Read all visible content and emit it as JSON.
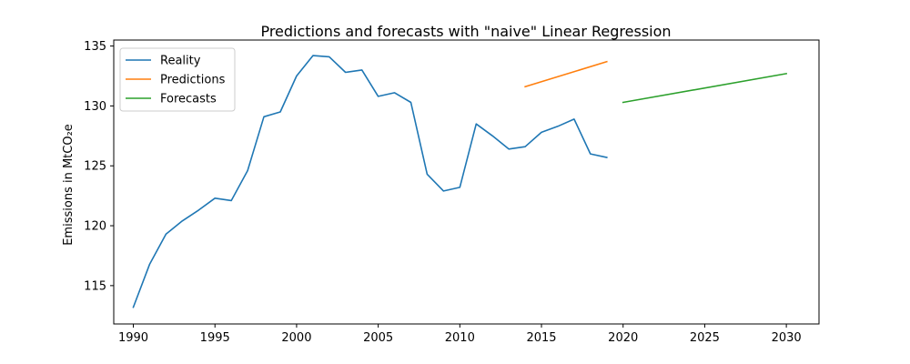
{
  "chart_data": {
    "type": "line",
    "title": "Predictions and forecasts with \"naive\" Linear Regression",
    "xlabel": "",
    "ylabel": "Emissions in MtCO₂e",
    "xlim": [
      1988.8,
      2032
    ],
    "ylim": [
      111.8,
      135.5
    ],
    "xticks": [
      1990,
      1995,
      2000,
      2005,
      2010,
      2015,
      2020,
      2025,
      2030
    ],
    "yticks": [
      115,
      120,
      125,
      130,
      135
    ],
    "grid": false,
    "legend_position": "top-left",
    "series": [
      {
        "name": "Reality",
        "color": "#1f77b4",
        "x": [
          1990,
          1991,
          1992,
          1993,
          1994,
          1995,
          1996,
          1997,
          1998,
          1999,
          2000,
          2001,
          2002,
          2003,
          2004,
          2005,
          2006,
          2007,
          2008,
          2009,
          2010,
          2011,
          2012,
          2013,
          2014,
          2015,
          2016,
          2017,
          2018,
          2019
        ],
        "y": [
          113.2,
          116.8,
          119.3,
          120.4,
          121.3,
          122.3,
          122.1,
          124.6,
          129.1,
          129.5,
          132.5,
          134.2,
          134.1,
          132.8,
          133.0,
          130.8,
          131.1,
          130.3,
          124.3,
          122.9,
          123.2,
          128.5,
          127.5,
          126.4,
          126.6,
          127.8,
          128.3,
          128.9,
          126.0,
          125.7
        ]
      },
      {
        "name": "Predictions",
        "color": "#ff7f0e",
        "x": [
          2014,
          2019
        ],
        "y": [
          131.6,
          133.7
        ]
      },
      {
        "name": "Forecasts",
        "color": "#2ca02c",
        "x": [
          2020,
          2030
        ],
        "y": [
          130.3,
          132.7
        ]
      }
    ]
  }
}
